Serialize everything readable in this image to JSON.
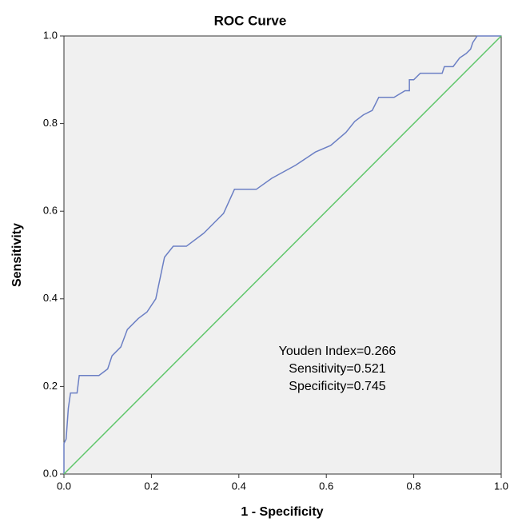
{
  "chart_data": {
    "type": "line",
    "title": "ROC Curve",
    "x_label": "1 - Specificity",
    "y_label": "Sensitivity",
    "xlim": [
      0,
      1
    ],
    "ylim": [
      0,
      1
    ],
    "xticks": [
      {
        "value": 0,
        "label": "0.0"
      },
      {
        "value": 0.2,
        "label": "0.2"
      },
      {
        "value": 0.4,
        "label": "0.4"
      },
      {
        "value": 0.6,
        "label": "0.6"
      },
      {
        "value": 0.8,
        "label": "0.8"
      },
      {
        "value": 1,
        "label": "1.0"
      }
    ],
    "yticks": [
      {
        "value": 0,
        "label": "0.0"
      },
      {
        "value": 0.2,
        "label": "0.2"
      },
      {
        "value": 0.4,
        "label": "0.4"
      },
      {
        "value": 0.6,
        "label": "0.6"
      },
      {
        "value": 0.8,
        "label": "0.8"
      },
      {
        "value": 1,
        "label": "1.0"
      }
    ],
    "series": [
      {
        "color": "#6b7fc4",
        "x": [
          0,
          0,
          0.005,
          0.01,
          0.015,
          0.03,
          0.035,
          0.08,
          0.1,
          0.11,
          0.13,
          0.145,
          0.17,
          0.19,
          0.21,
          0.23,
          0.25,
          0.28,
          0.32,
          0.345,
          0.365,
          0.39,
          0.44,
          0.475,
          0.53,
          0.575,
          0.61,
          0.645,
          0.665,
          0.685,
          0.705,
          0.72,
          0.755,
          0.78,
          0.79,
          0.79,
          0.8,
          0.815,
          0.865,
          0.87,
          0.89,
          0.905,
          0.92,
          0.93,
          0.935,
          0.945,
          1
        ],
        "values": [
          0,
          0.07,
          0.08,
          0.15,
          0.185,
          0.185,
          0.225,
          0.225,
          0.24,
          0.27,
          0.29,
          0.33,
          0.355,
          0.37,
          0.4,
          0.495,
          0.52,
          0.52,
          0.55,
          0.575,
          0.595,
          0.65,
          0.65,
          0.675,
          0.705,
          0.735,
          0.75,
          0.78,
          0.805,
          0.82,
          0.83,
          0.86,
          0.86,
          0.875,
          0.875,
          0.9,
          0.9,
          0.915,
          0.915,
          0.93,
          0.93,
          0.95,
          0.96,
          0.97,
          0.985,
          1,
          1
        ]
      },
      {
        "color": "#5fc66a",
        "x": [
          0,
          1
        ],
        "values": [
          0,
          1
        ]
      }
    ],
    "annotations": [
      "Youden Index=0.266",
      "Sensitivity=0.521",
      "Specificity=0.745"
    ]
  }
}
